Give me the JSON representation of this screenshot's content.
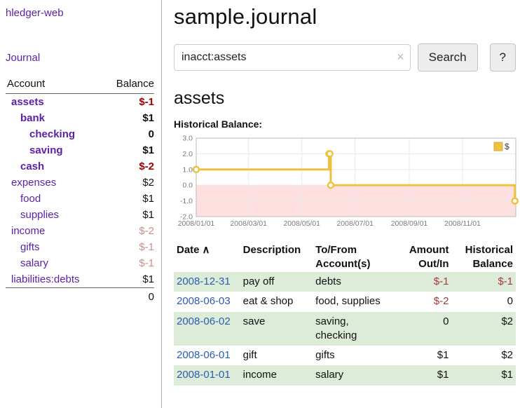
{
  "colors": {
    "purple": "#5b1fa8",
    "blue": "#2a5db0",
    "neg-strong": "#a40000",
    "neg-pale": "#c9908c",
    "neg": "#a33c3c",
    "stripe": "#dcecd9"
  },
  "sidebar": {
    "app_title": "hledger-web",
    "journal_link": "Journal",
    "header": {
      "account": "Account",
      "balance": "Balance"
    },
    "accounts": [
      {
        "name": "assets",
        "balance": "$-1"
      },
      {
        "name": "bank",
        "balance": "$1"
      },
      {
        "name": "checking",
        "balance": "0"
      },
      {
        "name": "saving",
        "balance": "$1"
      },
      {
        "name": "cash",
        "balance": "$-2"
      },
      {
        "name": "expenses",
        "balance": "$2"
      },
      {
        "name": "food",
        "balance": "$1"
      },
      {
        "name": "supplies",
        "balance": "$1"
      },
      {
        "name": "income",
        "balance": "$-2"
      },
      {
        "name": "gifts",
        "balance": "$-1"
      },
      {
        "name": "salary",
        "balance": "$-1"
      },
      {
        "name": "liabilities:debts",
        "balance": "$1"
      }
    ],
    "total": "0"
  },
  "main": {
    "title": "sample.journal",
    "search": {
      "value": "inacct:assets",
      "clear_icon": "×",
      "button_label": "Search",
      "help_label": "?"
    },
    "account_heading": "assets",
    "chart_title": "Historical Balance:"
  },
  "chart_data": {
    "type": "line",
    "step": true,
    "title": "Historical Balance",
    "series": [
      {
        "name": "$",
        "color": "#edc240",
        "points": [
          [
            "2008-01-01",
            1
          ],
          [
            "2008-06-01",
            2
          ],
          [
            "2008-06-02",
            2
          ],
          [
            "2008-06-03",
            0
          ],
          [
            "2008-12-31",
            -1
          ]
        ]
      }
    ],
    "x_domain": [
      "2008-01-01",
      "2009-01-01"
    ],
    "ylim": [
      -2,
      3
    ],
    "y_ticks": [
      3,
      2,
      1,
      0,
      -1,
      -2
    ],
    "x_ticks": [
      "2008/01/01",
      "2008/03/01",
      "2008/05/01",
      "2008/07/01",
      "2008/09/01",
      "2008/11/01"
    ],
    "negative_fill": "rgba(255,0,0,0.12)",
    "grid": true,
    "legend_position": "top-right"
  },
  "register": {
    "sort_indicator": "∧",
    "headers": {
      "date": "Date",
      "description": "Description",
      "account": "To/From Account(s)",
      "amount": "Amount Out/In",
      "balance": "Historical Balance"
    },
    "rows": [
      {
        "date": "2008-12-31",
        "description": "pay off",
        "accounts": "debts",
        "amount": "$-1",
        "balance": "$-1"
      },
      {
        "date": "2008-06-03",
        "description": "eat & shop",
        "accounts": "food, supplies",
        "amount": "$-2",
        "balance": "0"
      },
      {
        "date": "2008-06-02",
        "description": "save",
        "accounts": "saving, checking",
        "amount": "0",
        "balance": "$2"
      },
      {
        "date": "2008-06-01",
        "description": "gift",
        "accounts": "gifts",
        "amount": "$1",
        "balance": "$2"
      },
      {
        "date": "2008-01-01",
        "description": "income",
        "accounts": "salary",
        "amount": "$1",
        "balance": "$1"
      }
    ]
  }
}
